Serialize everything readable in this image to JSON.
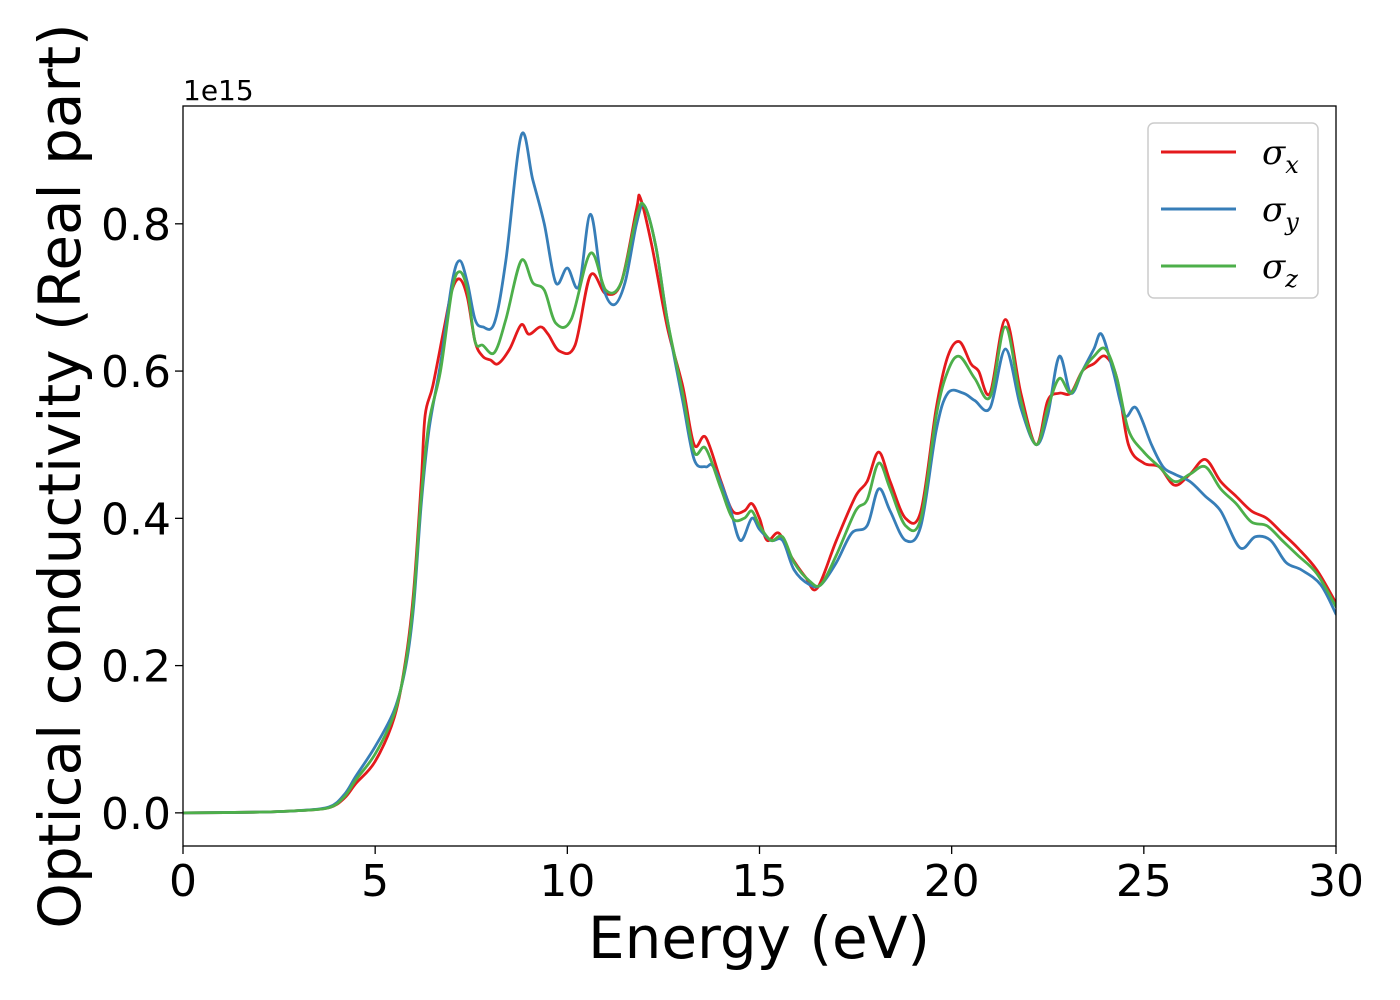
{
  "chart_data": {
    "type": "line",
    "title": "",
    "xlabel": "Energy (eV)",
    "ylabel": "Optical conductivity (Real part)",
    "y_offset_label": "1e15",
    "xlim": [
      0,
      30
    ],
    "ylim": [
      -0.045,
      0.96
    ],
    "x_ticks": [
      0,
      5,
      10,
      15,
      20,
      25,
      30
    ],
    "x_tick_labels": [
      "0",
      "5",
      "10",
      "15",
      "20",
      "25",
      "30"
    ],
    "y_ticks": [
      0.0,
      0.2,
      0.4,
      0.6,
      0.8
    ],
    "y_tick_labels": [
      "0.0",
      "0.2",
      "0.4",
      "0.6",
      "0.8"
    ],
    "grid": false,
    "legend_position": "top-right",
    "series": [
      {
        "name": "σx",
        "legend": {
          "base": "σ",
          "sub": "x"
        },
        "color": "#e41a1c",
        "points": [
          [
            0,
            0
          ],
          [
            2,
            0.001
          ],
          [
            3,
            0.003
          ],
          [
            3.8,
            0.007
          ],
          [
            4.2,
            0.02
          ],
          [
            4.5,
            0.04
          ],
          [
            5,
            0.07
          ],
          [
            5.5,
            0.13
          ],
          [
            5.8,
            0.21
          ],
          [
            6.0,
            0.3
          ],
          [
            6.2,
            0.45
          ],
          [
            6.3,
            0.54
          ],
          [
            6.5,
            0.58
          ],
          [
            6.8,
            0.66
          ],
          [
            7.0,
            0.71
          ],
          [
            7.2,
            0.725
          ],
          [
            7.4,
            0.7
          ],
          [
            7.6,
            0.64
          ],
          [
            7.8,
            0.62
          ],
          [
            8.0,
            0.615
          ],
          [
            8.2,
            0.61
          ],
          [
            8.5,
            0.63
          ],
          [
            8.8,
            0.663
          ],
          [
            9.0,
            0.65
          ],
          [
            9.3,
            0.66
          ],
          [
            9.5,
            0.65
          ],
          [
            9.8,
            0.627
          ],
          [
            10.2,
            0.635
          ],
          [
            10.6,
            0.73
          ],
          [
            11.0,
            0.705
          ],
          [
            11.4,
            0.72
          ],
          [
            11.8,
            0.82
          ],
          [
            11.9,
            0.835
          ],
          [
            12.2,
            0.77
          ],
          [
            12.6,
            0.66
          ],
          [
            13.0,
            0.58
          ],
          [
            13.3,
            0.5
          ],
          [
            13.6,
            0.51
          ],
          [
            14.0,
            0.45
          ],
          [
            14.3,
            0.41
          ],
          [
            14.6,
            0.41
          ],
          [
            14.8,
            0.42
          ],
          [
            15.0,
            0.4
          ],
          [
            15.2,
            0.37
          ],
          [
            15.5,
            0.38
          ],
          [
            15.8,
            0.35
          ],
          [
            16.2,
            0.32
          ],
          [
            16.5,
            0.305
          ],
          [
            17.0,
            0.37
          ],
          [
            17.5,
            0.43
          ],
          [
            17.8,
            0.45
          ],
          [
            18.1,
            0.49
          ],
          [
            18.4,
            0.45
          ],
          [
            18.8,
            0.4
          ],
          [
            19.2,
            0.41
          ],
          [
            19.6,
            0.55
          ],
          [
            19.9,
            0.62
          ],
          [
            20.2,
            0.64
          ],
          [
            20.5,
            0.61
          ],
          [
            20.7,
            0.6
          ],
          [
            21.0,
            0.57
          ],
          [
            21.4,
            0.67
          ],
          [
            21.8,
            0.57
          ],
          [
            22.2,
            0.5
          ],
          [
            22.5,
            0.56
          ],
          [
            22.8,
            0.57
          ],
          [
            23.1,
            0.57
          ],
          [
            23.4,
            0.6
          ],
          [
            23.7,
            0.61
          ],
          [
            24.0,
            0.62
          ],
          [
            24.3,
            0.59
          ],
          [
            24.6,
            0.5
          ],
          [
            25.0,
            0.475
          ],
          [
            25.4,
            0.47
          ],
          [
            25.8,
            0.445
          ],
          [
            26.2,
            0.46
          ],
          [
            26.6,
            0.48
          ],
          [
            27.0,
            0.45
          ],
          [
            27.4,
            0.43
          ],
          [
            27.8,
            0.41
          ],
          [
            28.2,
            0.4
          ],
          [
            28.6,
            0.38
          ],
          [
            29.0,
            0.36
          ],
          [
            29.5,
            0.33
          ],
          [
            30.0,
            0.285
          ]
        ]
      },
      {
        "name": "σy",
        "legend": {
          "base": "σ",
          "sub": "y"
        },
        "color": "#377eb8",
        "points": [
          [
            0,
            0
          ],
          [
            2,
            0.001
          ],
          [
            3,
            0.003
          ],
          [
            3.8,
            0.008
          ],
          [
            4.2,
            0.025
          ],
          [
            4.5,
            0.05
          ],
          [
            5,
            0.09
          ],
          [
            5.5,
            0.14
          ],
          [
            5.8,
            0.2
          ],
          [
            6.0,
            0.28
          ],
          [
            6.2,
            0.42
          ],
          [
            6.4,
            0.52
          ],
          [
            6.7,
            0.61
          ],
          [
            7.0,
            0.72
          ],
          [
            7.2,
            0.75
          ],
          [
            7.4,
            0.72
          ],
          [
            7.6,
            0.67
          ],
          [
            7.8,
            0.66
          ],
          [
            8.1,
            0.665
          ],
          [
            8.4,
            0.75
          ],
          [
            8.8,
            0.92
          ],
          [
            9.1,
            0.86
          ],
          [
            9.4,
            0.8
          ],
          [
            9.7,
            0.72
          ],
          [
            10.0,
            0.74
          ],
          [
            10.3,
            0.715
          ],
          [
            10.6,
            0.813
          ],
          [
            10.9,
            0.72
          ],
          [
            11.2,
            0.69
          ],
          [
            11.5,
            0.72
          ],
          [
            11.8,
            0.8
          ],
          [
            12.0,
            0.825
          ],
          [
            12.3,
            0.77
          ],
          [
            12.6,
            0.67
          ],
          [
            13.0,
            0.56
          ],
          [
            13.3,
            0.48
          ],
          [
            13.6,
            0.47
          ],
          [
            13.8,
            0.47
          ],
          [
            14.2,
            0.42
          ],
          [
            14.5,
            0.37
          ],
          [
            14.8,
            0.4
          ],
          [
            15.0,
            0.385
          ],
          [
            15.3,
            0.37
          ],
          [
            15.6,
            0.37
          ],
          [
            15.9,
            0.33
          ],
          [
            16.3,
            0.31
          ],
          [
            16.6,
            0.31
          ],
          [
            17.0,
            0.34
          ],
          [
            17.4,
            0.38
          ],
          [
            17.8,
            0.39
          ],
          [
            18.1,
            0.44
          ],
          [
            18.4,
            0.41
          ],
          [
            18.8,
            0.37
          ],
          [
            19.2,
            0.39
          ],
          [
            19.6,
            0.52
          ],
          [
            19.9,
            0.57
          ],
          [
            20.3,
            0.57
          ],
          [
            20.6,
            0.56
          ],
          [
            21.0,
            0.55
          ],
          [
            21.4,
            0.63
          ],
          [
            21.8,
            0.55
          ],
          [
            22.2,
            0.5
          ],
          [
            22.5,
            0.54
          ],
          [
            22.8,
            0.62
          ],
          [
            23.1,
            0.57
          ],
          [
            23.4,
            0.6
          ],
          [
            23.7,
            0.63
          ],
          [
            23.9,
            0.65
          ],
          [
            24.2,
            0.6
          ],
          [
            24.5,
            0.54
          ],
          [
            24.8,
            0.55
          ],
          [
            25.2,
            0.5
          ],
          [
            25.5,
            0.47
          ],
          [
            25.8,
            0.46
          ],
          [
            26.2,
            0.45
          ],
          [
            26.6,
            0.43
          ],
          [
            27.0,
            0.41
          ],
          [
            27.5,
            0.36
          ],
          [
            27.9,
            0.375
          ],
          [
            28.3,
            0.37
          ],
          [
            28.7,
            0.34
          ],
          [
            29.1,
            0.33
          ],
          [
            29.6,
            0.31
          ],
          [
            30.0,
            0.27
          ]
        ]
      },
      {
        "name": "σz",
        "legend": {
          "base": "σ",
          "sub": "z"
        },
        "color": "#4daf4a",
        "points": [
          [
            0,
            0
          ],
          [
            2,
            0.001
          ],
          [
            3,
            0.003
          ],
          [
            3.8,
            0.007
          ],
          [
            4.2,
            0.022
          ],
          [
            4.5,
            0.045
          ],
          [
            5,
            0.08
          ],
          [
            5.5,
            0.135
          ],
          [
            5.8,
            0.205
          ],
          [
            6.0,
            0.29
          ],
          [
            6.2,
            0.43
          ],
          [
            6.4,
            0.53
          ],
          [
            6.7,
            0.6
          ],
          [
            7.0,
            0.71
          ],
          [
            7.2,
            0.735
          ],
          [
            7.4,
            0.71
          ],
          [
            7.6,
            0.64
          ],
          [
            7.8,
            0.635
          ],
          [
            8.1,
            0.625
          ],
          [
            8.4,
            0.67
          ],
          [
            8.8,
            0.75
          ],
          [
            9.1,
            0.72
          ],
          [
            9.4,
            0.71
          ],
          [
            9.7,
            0.665
          ],
          [
            10.1,
            0.67
          ],
          [
            10.6,
            0.76
          ],
          [
            11.0,
            0.71
          ],
          [
            11.4,
            0.72
          ],
          [
            11.8,
            0.81
          ],
          [
            12.0,
            0.825
          ],
          [
            12.3,
            0.77
          ],
          [
            12.6,
            0.67
          ],
          [
            13.0,
            0.57
          ],
          [
            13.3,
            0.49
          ],
          [
            13.6,
            0.495
          ],
          [
            14.0,
            0.44
          ],
          [
            14.3,
            0.4
          ],
          [
            14.6,
            0.4
          ],
          [
            14.8,
            0.41
          ],
          [
            15.0,
            0.39
          ],
          [
            15.3,
            0.37
          ],
          [
            15.6,
            0.375
          ],
          [
            15.9,
            0.34
          ],
          [
            16.3,
            0.315
          ],
          [
            16.6,
            0.31
          ],
          [
            17.0,
            0.35
          ],
          [
            17.5,
            0.41
          ],
          [
            17.8,
            0.425
          ],
          [
            18.1,
            0.475
          ],
          [
            18.4,
            0.44
          ],
          [
            18.8,
            0.39
          ],
          [
            19.2,
            0.4
          ],
          [
            19.6,
            0.54
          ],
          [
            19.9,
            0.6
          ],
          [
            20.2,
            0.62
          ],
          [
            20.6,
            0.59
          ],
          [
            21.0,
            0.565
          ],
          [
            21.4,
            0.66
          ],
          [
            21.8,
            0.56
          ],
          [
            22.2,
            0.5
          ],
          [
            22.5,
            0.55
          ],
          [
            22.8,
            0.59
          ],
          [
            23.1,
            0.57
          ],
          [
            23.4,
            0.6
          ],
          [
            23.7,
            0.62
          ],
          [
            24.0,
            0.63
          ],
          [
            24.3,
            0.59
          ],
          [
            24.6,
            0.52
          ],
          [
            25.0,
            0.49
          ],
          [
            25.4,
            0.47
          ],
          [
            25.8,
            0.45
          ],
          [
            26.2,
            0.46
          ],
          [
            26.6,
            0.47
          ],
          [
            27.0,
            0.44
          ],
          [
            27.4,
            0.42
          ],
          [
            27.8,
            0.395
          ],
          [
            28.2,
            0.39
          ],
          [
            28.6,
            0.37
          ],
          [
            29.0,
            0.35
          ],
          [
            29.5,
            0.325
          ],
          [
            30.0,
            0.28
          ]
        ]
      }
    ]
  }
}
